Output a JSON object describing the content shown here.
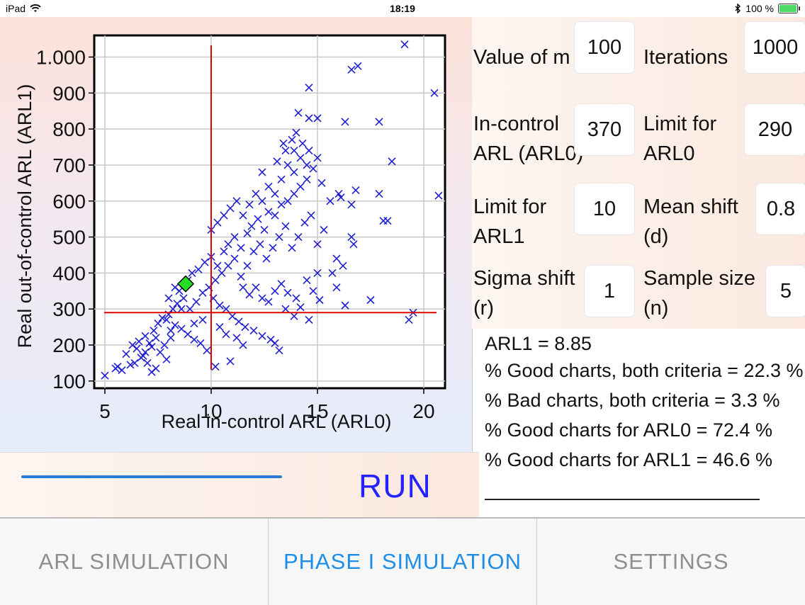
{
  "status_bar": {
    "device": "iPad",
    "time": "18:19",
    "battery": "100 %"
  },
  "chart_data": {
    "type": "scatter",
    "xlabel": "Real in-control ARL (ARL0)",
    "ylabel": "Real out-of-control ARL (ARL1)",
    "xlim": [
      4.5,
      21
    ],
    "ylim": [
      80,
      1060
    ],
    "x_ticks": [
      "5",
      "10",
      "15",
      "20"
    ],
    "y_ticks": [
      "100",
      "200",
      "300",
      "400",
      "500",
      "600",
      "700",
      "800",
      "900",
      "1.000"
    ],
    "reference_lines": {
      "vertical_x": 10,
      "horizontal_y": 290
    },
    "highlight_point": {
      "x": 8.8,
      "y": 370,
      "marker": "diamond",
      "color": "#22dd22"
    },
    "series": [
      {
        "marker": "x",
        "color": "#1f1fd0",
        "points": [
          [
            5.0,
            115
          ],
          [
            5.6,
            140
          ],
          [
            5.5,
            135
          ],
          [
            6.0,
            175
          ],
          [
            6.3,
            200
          ],
          [
            6.5,
            190
          ],
          [
            6.8,
            170
          ],
          [
            7.0,
            150
          ],
          [
            7.2,
            125
          ],
          [
            7.4,
            135
          ],
          [
            6.6,
            210
          ],
          [
            6.9,
            225
          ],
          [
            7.1,
            205
          ],
          [
            7.3,
            240
          ],
          [
            7.6,
            180
          ],
          [
            7.8,
            200
          ],
          [
            7.9,
            160
          ],
          [
            8.1,
            220
          ],
          [
            8.3,
            255
          ],
          [
            8.6,
            245
          ],
          [
            8.9,
            230
          ],
          [
            9.2,
            215
          ],
          [
            9.5,
            205
          ],
          [
            9.8,
            185
          ],
          [
            10.2,
            140
          ],
          [
            10.9,
            155
          ],
          [
            13.2,
            185
          ],
          [
            7.5,
            260
          ],
          [
            7.7,
            275
          ],
          [
            8.0,
            285
          ],
          [
            8.2,
            300
          ],
          [
            8.4,
            315
          ],
          [
            8.7,
            330
          ],
          [
            9.0,
            300
          ],
          [
            9.3,
            320
          ],
          [
            9.6,
            345
          ],
          [
            9.9,
            360
          ],
          [
            10.1,
            330
          ],
          [
            10.4,
            310
          ],
          [
            10.7,
            300
          ],
          [
            11.0,
            280
          ],
          [
            11.3,
            265
          ],
          [
            11.6,
            250
          ],
          [
            12.0,
            240
          ],
          [
            12.4,
            225
          ],
          [
            12.8,
            215
          ],
          [
            13.0,
            205
          ],
          [
            13.5,
            300
          ],
          [
            13.9,
            280
          ],
          [
            14.2,
            305
          ],
          [
            14.6,
            270
          ],
          [
            15.1,
            325
          ],
          [
            16.3,
            310
          ],
          [
            17.5,
            325
          ],
          [
            19.3,
            270
          ],
          [
            19.5,
            290
          ],
          [
            8.5,
            350
          ],
          [
            8.9,
            380
          ],
          [
            9.1,
            400
          ],
          [
            9.4,
            410
          ],
          [
            9.7,
            430
          ],
          [
            10.0,
            445
          ],
          [
            10.3,
            420
          ],
          [
            10.6,
            460
          ],
          [
            10.8,
            480
          ],
          [
            11.1,
            500
          ],
          [
            11.4,
            470
          ],
          [
            11.7,
            510
          ],
          [
            11.9,
            530
          ],
          [
            12.2,
            550
          ],
          [
            12.5,
            520
          ],
          [
            12.7,
            570
          ],
          [
            13.0,
            560
          ],
          [
            13.3,
            590
          ],
          [
            13.6,
            600
          ],
          [
            13.9,
            620
          ],
          [
            14.2,
            640
          ],
          [
            14.5,
            660
          ],
          [
            14.8,
            690
          ],
          [
            15.0,
            720
          ],
          [
            15.2,
            650
          ],
          [
            10.2,
            380
          ],
          [
            10.5,
            400
          ],
          [
            10.8,
            420
          ],
          [
            11.1,
            440
          ],
          [
            11.4,
            390
          ],
          [
            11.7,
            420
          ],
          [
            12.0,
            460
          ],
          [
            12.3,
            480
          ],
          [
            12.6,
            440
          ],
          [
            12.9,
            470
          ],
          [
            13.2,
            500
          ],
          [
            13.5,
            530
          ],
          [
            13.8,
            470
          ],
          [
            14.1,
            500
          ],
          [
            14.4,
            540
          ],
          [
            14.7,
            560
          ],
          [
            15.0,
            480
          ],
          [
            15.3,
            520
          ],
          [
            15.6,
            600
          ],
          [
            16.0,
            620
          ],
          [
            16.1,
            610
          ],
          [
            16.6,
            590
          ],
          [
            16.8,
            630
          ],
          [
            16.6,
            500
          ],
          [
            16.7,
            480
          ],
          [
            15.9,
            440
          ],
          [
            15.7,
            400
          ],
          [
            15.9,
            360
          ],
          [
            16.2,
            420
          ],
          [
            18.1,
            545
          ],
          [
            18.3,
            545
          ],
          [
            17.9,
            620
          ],
          [
            12.4,
            680
          ],
          [
            13.1,
            710
          ],
          [
            13.5,
            740
          ],
          [
            13.8,
            770
          ],
          [
            14.0,
            790
          ],
          [
            14.3,
            760
          ],
          [
            14.6,
            740
          ],
          [
            14.1,
            845
          ],
          [
            14.6,
            830
          ],
          [
            15.0,
            830
          ],
          [
            16.3,
            820
          ],
          [
            17.9,
            820
          ],
          [
            18.5,
            710
          ],
          [
            16.6,
            965
          ],
          [
            16.9,
            975
          ],
          [
            14.6,
            915
          ],
          [
            19.1,
            1035
          ],
          [
            20.5,
            900
          ],
          [
            20.7,
            615
          ],
          [
            11.5,
            360
          ],
          [
            11.8,
            340
          ],
          [
            12.1,
            360
          ],
          [
            12.4,
            330
          ],
          [
            12.7,
            320
          ],
          [
            13.0,
            350
          ],
          [
            13.3,
            370
          ],
          [
            13.6,
            345
          ],
          [
            14.0,
            330
          ],
          [
            14.5,
            380
          ],
          [
            15.0,
            400
          ],
          [
            14.8,
            350
          ],
          [
            9.2,
            260
          ],
          [
            9.6,
            270
          ],
          [
            10.4,
            250
          ],
          [
            10.7,
            230
          ],
          [
            11.2,
            220
          ],
          [
            11.5,
            200
          ],
          [
            8.0,
            330
          ],
          [
            8.3,
            360
          ],
          [
            8.6,
            300
          ],
          [
            7.9,
            270
          ],
          [
            8.1,
            240
          ],
          [
            7.4,
            220
          ],
          [
            7.2,
            195
          ],
          [
            6.9,
            180
          ],
          [
            6.7,
            165
          ],
          [
            6.4,
            150
          ],
          [
            6.2,
            145
          ],
          [
            5.8,
            130
          ],
          [
            10.0,
            520
          ],
          [
            10.3,
            540
          ],
          [
            10.6,
            560
          ],
          [
            10.9,
            580
          ],
          [
            11.2,
            600
          ],
          [
            11.5,
            560
          ],
          [
            11.8,
            590
          ],
          [
            12.1,
            620
          ],
          [
            12.4,
            600
          ],
          [
            12.7,
            640
          ],
          [
            13.0,
            620
          ],
          [
            13.3,
            660
          ],
          [
            13.6,
            700
          ],
          [
            13.9,
            680
          ],
          [
            14.2,
            720
          ],
          [
            14.5,
            700
          ],
          [
            13.9,
            740
          ],
          [
            13.4,
            760
          ]
        ]
      }
    ]
  },
  "form": {
    "value_of_m_label": "Value of m",
    "value_of_m": "100",
    "iterations_label": "Iterations",
    "iterations": "1000",
    "in_control_label_1": "In-control",
    "in_control_label_2": "ARL (ARL0)",
    "in_control": "370",
    "limit_arl0_label_1": "Limit for",
    "limit_arl0_label_2": "ARL0",
    "limit_arl0": "290",
    "limit_arl1_label_1": "Limit for",
    "limit_arl1_label_2": "ARL1",
    "limit_arl1": "10",
    "mean_shift_label_1": "Mean shift",
    "mean_shift_label_2": "(d)",
    "mean_shift": "0.8",
    "sigma_shift_label_1": "Sigma shift",
    "sigma_shift_label_2": "(r)",
    "sigma_shift": "1",
    "sample_size_label_1": "Sample size",
    "sample_size_label_2": "(n)",
    "sample_size": "5"
  },
  "results": {
    "line1": "ARL1 = 8.85",
    "line2": "% Good charts, both criteria = 22.3 %",
    "line3": "% Bad charts, both criteria = 3.3 %",
    "line4": "% Good charts for ARL0 = 72.4 %",
    "line5": "% Good charts for ARL1 = 46.6 %"
  },
  "progress": 1.0,
  "run_label": "RUN",
  "tabs": [
    {
      "label": "ARL SIMULATION"
    },
    {
      "label": "PHASE I SIMULATION"
    },
    {
      "label": "SETTINGS"
    }
  ]
}
